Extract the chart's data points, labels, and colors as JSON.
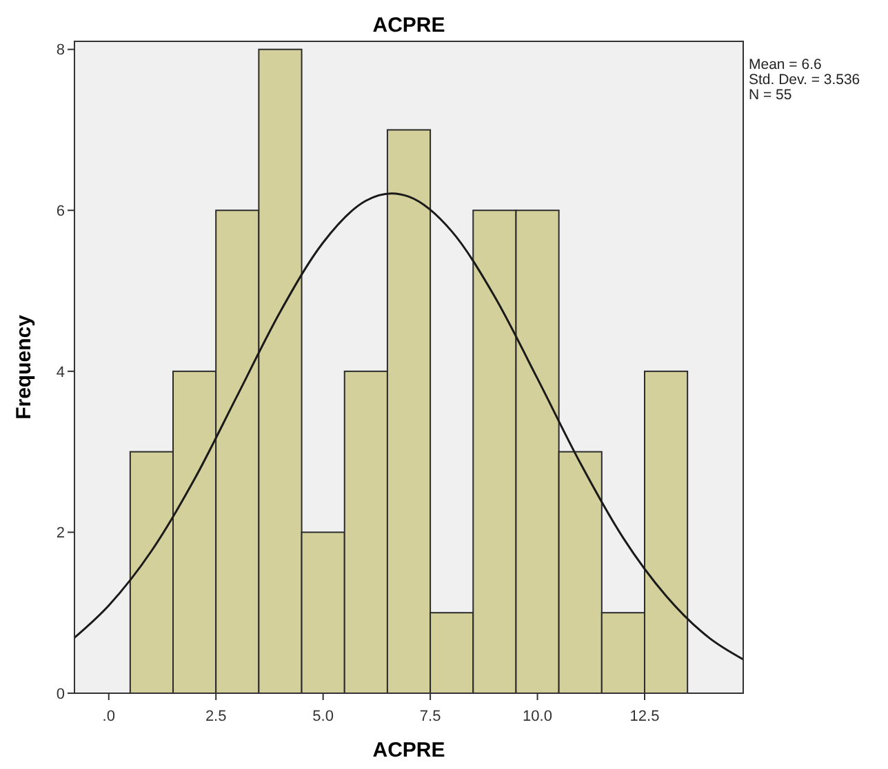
{
  "chart_data": {
    "type": "histogram",
    "title": "ACPRE",
    "xlabel": "ACPRE",
    "ylabel": "Frequency",
    "annotations": [
      "Mean = 6.6",
      "Std. Dev. = 3.536",
      "N = 55"
    ],
    "bins": [
      0.5,
      1.5,
      2.5,
      3.5,
      4.5,
      5.5,
      6.5,
      7.5,
      8.5,
      9.5,
      10.5,
      11.5,
      12.5,
      13.5
    ],
    "values": [
      3,
      4,
      6,
      8,
      2,
      4,
      7,
      1,
      6,
      6,
      3,
      1,
      4
    ],
    "color": "#d4d09c",
    "series": [
      {
        "type": "line",
        "color": "#1a1a1a",
        "x": [
          -0.8,
          0,
          1,
          2,
          3,
          4,
          5,
          6,
          6.6,
          7,
          8,
          9,
          10,
          11,
          12,
          13,
          14,
          14.8
        ],
        "values": [
          0.69,
          1.09,
          1.77,
          2.66,
          3.7,
          4.74,
          5.6,
          6.12,
          6.21,
          6.17,
          5.74,
          4.93,
          3.91,
          2.86,
          1.93,
          1.21,
          0.69,
          0.42
        ]
      }
    ],
    "xlim": [
      -0.8,
      14.8
    ],
    "xticks": [
      {
        "value": 0,
        "label": ".0"
      },
      {
        "value": 2.5,
        "label": "2.5"
      },
      {
        "value": 5,
        "label": "5.0"
      },
      {
        "value": 7.5,
        "label": "7.5"
      },
      {
        "value": 10,
        "label": "10.0"
      },
      {
        "value": 12.5,
        "label": "12.5"
      }
    ],
    "ylim": [
      0,
      8.1
    ],
    "yticks": [
      0,
      2,
      4,
      6,
      8
    ],
    "grid": false
  }
}
